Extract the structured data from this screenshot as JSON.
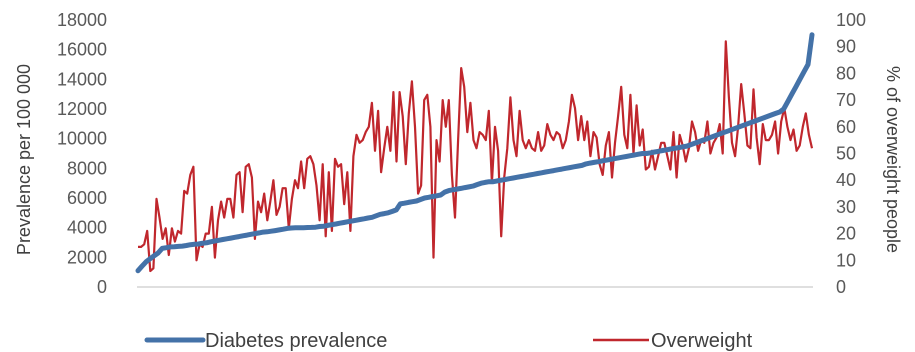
{
  "chart_data": {
    "type": "line",
    "title": "",
    "xlabel": "",
    "ylabel": "Prevalence per 100 000",
    "y2label": "% of overweight people",
    "ylim": [
      0,
      18000
    ],
    "y2lim": [
      0,
      100
    ],
    "yticks": [
      "0",
      "2000",
      "4000",
      "6000",
      "8000",
      "10000",
      "12000",
      "14000",
      "16000",
      "18000"
    ],
    "y2ticks": [
      "0",
      "10",
      "20",
      "30",
      "40",
      "50",
      "60",
      "70",
      "80",
      "90",
      "100"
    ],
    "grid": false,
    "legend_position": "bottom",
    "series": [
      {
        "name": "Diabetes prevalence",
        "axis": "left",
        "color": "#4472a8",
        "values": [
          1100,
          1400,
          1700,
          1900,
          2100,
          2300,
          2600,
          2650,
          2700,
          2720,
          2740,
          2760,
          2800,
          2850,
          2880,
          2900,
          2950,
          2980,
          3050,
          3100,
          3150,
          3200,
          3250,
          3300,
          3350,
          3400,
          3450,
          3500,
          3550,
          3600,
          3650,
          3700,
          3720,
          3760,
          3800,
          3850,
          3900,
          3950,
          3980,
          3990,
          4000,
          4000,
          4010,
          4020,
          4030,
          4080,
          4100,
          4150,
          4200,
          4250,
          4300,
          4350,
          4400,
          4450,
          4500,
          4550,
          4600,
          4650,
          4700,
          4800,
          4900,
          4950,
          5000,
          5100,
          5200,
          5600,
          5650,
          5700,
          5750,
          5800,
          5900,
          6000,
          6050,
          6100,
          6150,
          6200,
          6400,
          6500,
          6550,
          6600,
          6650,
          6700,
          6750,
          6800,
          6900,
          7000,
          7050,
          7100,
          7100,
          7150,
          7200,
          7250,
          7300,
          7350,
          7400,
          7450,
          7500,
          7550,
          7600,
          7650,
          7700,
          7750,
          7800,
          7850,
          7900,
          7950,
          8000,
          8050,
          8100,
          8150,
          8200,
          8300,
          8350,
          8400,
          8450,
          8500,
          8550,
          8600,
          8650,
          8700,
          8750,
          8800,
          8850,
          8900,
          8950,
          9000,
          9000,
          9050,
          9100,
          9150,
          9200,
          9250,
          9300,
          9350,
          9400,
          9450,
          9500,
          9600,
          9700,
          9800,
          9900,
          10000,
          10100,
          10200,
          10300,
          10400,
          10500,
          10600,
          10700,
          10800,
          10900,
          11000,
          11100,
          11200,
          11300,
          11400,
          11500,
          11600,
          11700,
          11800,
          12000,
          12500,
          13000,
          13500,
          14000,
          14500,
          15000,
          17000
        ]
      },
      {
        "name": "Overweight",
        "axis": "right",
        "color": "#c0272d",
        "values": [
          15,
          15,
          16,
          21,
          6,
          7,
          33,
          26,
          18,
          22,
          12,
          22,
          17,
          21,
          20,
          36,
          35,
          42,
          45,
          10,
          16,
          15,
          20,
          20,
          30,
          11,
          25,
          32,
          26,
          33,
          33,
          26,
          42,
          43,
          28,
          45,
          46,
          41,
          18,
          32,
          28,
          35,
          25,
          32,
          40,
          27,
          30,
          37,
          37,
          22,
          33,
          40,
          37,
          47,
          37,
          48,
          49,
          46,
          38,
          25,
          46,
          19,
          43,
          21,
          48,
          45,
          46,
          31,
          43,
          21,
          49,
          57,
          54,
          55,
          58,
          60,
          69,
          51,
          66,
          43,
          52,
          60,
          51,
          73,
          47,
          73,
          64,
          46,
          65,
          77,
          60,
          35,
          38,
          70,
          72,
          60,
          11,
          55,
          47,
          70,
          60,
          70,
          42,
          26,
          55,
          82,
          75,
          58,
          69,
          55,
          52,
          58,
          57,
          55,
          66,
          39,
          60,
          51,
          19,
          41,
          52,
          71,
          55,
          49,
          66,
          55,
          52,
          55,
          52,
          51,
          58,
          51,
          53,
          61,
          57,
          55,
          58,
          57,
          52,
          55,
          62,
          72,
          67,
          55,
          64,
          55,
          62,
          49,
          58,
          56,
          46,
          42,
          53,
          58,
          41,
          54,
          64,
          75,
          57,
          52,
          72,
          50,
          68,
          53,
          59,
          44,
          45,
          51,
          44,
          49,
          54,
          54,
          49,
          44,
          58,
          41,
          57,
          53,
          47,
          52,
          62,
          58,
          51,
          55,
          54,
          62,
          50,
          54,
          56,
          61,
          50,
          92,
          71,
          54,
          49,
          60,
          76,
          65,
          53,
          52,
          74,
          56,
          46,
          61,
          55,
          55,
          57,
          62,
          50,
          62,
          67,
          60,
          55,
          59,
          51,
          53,
          60,
          65,
          57,
          52
        ]
      }
    ]
  }
}
